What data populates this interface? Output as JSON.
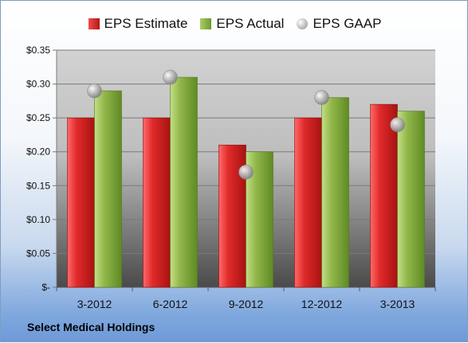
{
  "company": "Select Medical Holdings",
  "legend": {
    "estimate": "EPS Estimate",
    "actual": "EPS Actual",
    "gaap": "EPS GAAP"
  },
  "chart_data": {
    "type": "bar",
    "title": "",
    "categories": [
      "3-2012",
      "6-2012",
      "9-2012",
      "12-2012",
      "3-2013"
    ],
    "series": [
      {
        "name": "EPS Estimate",
        "values": [
          0.25,
          0.25,
          0.21,
          0.25,
          0.27
        ],
        "color": "#d42424"
      },
      {
        "name": "EPS Actual",
        "values": [
          0.29,
          0.31,
          0.2,
          0.28,
          0.26
        ],
        "color": "#8cb046"
      },
      {
        "name": "EPS GAAP",
        "values": [
          0.29,
          0.31,
          0.17,
          0.28,
          0.24
        ],
        "color": "#a8a8a8",
        "marker": "sphere"
      }
    ],
    "ylim": [
      0,
      0.35
    ],
    "yticks": [
      0,
      0.05,
      0.1,
      0.15,
      0.2,
      0.25,
      0.3,
      0.35
    ],
    "ytick_labels": [
      "$-",
      "$0.05",
      "$0.10",
      "$0.15",
      "$0.20",
      "$0.25",
      "$0.30",
      "$0.35"
    ],
    "grid": true,
    "legend_position": "top"
  }
}
